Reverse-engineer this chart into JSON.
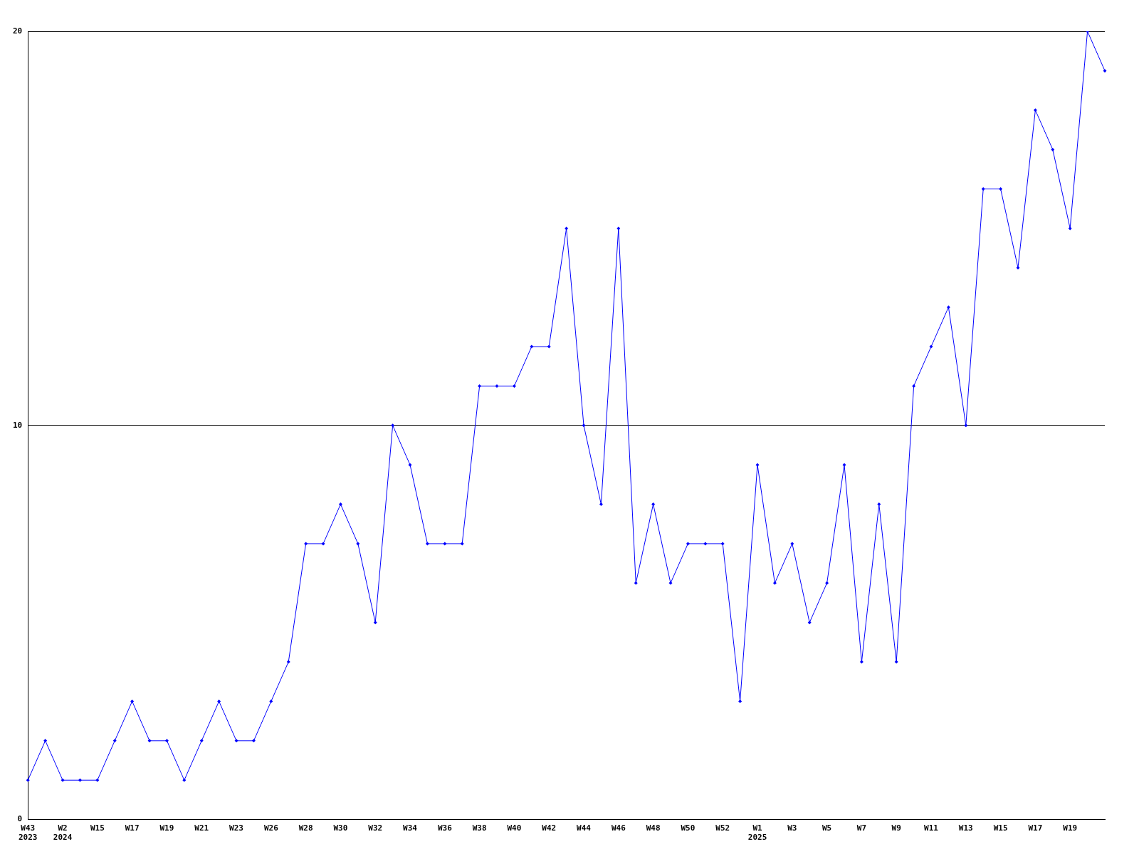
{
  "chart_data": {
    "type": "line",
    "categories": [
      "W43\n2023",
      null,
      "W2\n2024",
      null,
      "W15",
      null,
      "W17",
      null,
      "W19",
      null,
      "W21",
      null,
      "W23",
      null,
      "W26",
      null,
      "W28",
      null,
      "W30",
      null,
      "W32",
      null,
      "W34",
      null,
      "W36",
      null,
      "W38",
      null,
      "W40",
      null,
      "W42",
      null,
      "W44",
      null,
      "W46",
      null,
      "W48",
      null,
      "W50",
      null,
      "W52",
      null,
      "W1\n2025",
      null,
      "W3",
      null,
      "W5",
      null,
      "W7",
      null,
      "W9",
      null,
      "W11",
      null,
      "W13",
      null,
      "W15",
      null,
      "W17",
      null,
      "W19",
      null,
      null
    ],
    "series": [
      {
        "color": "#0000ff",
        "values": [
          1,
          2,
          1,
          1,
          1,
          2,
          3,
          2,
          2,
          1,
          2,
          3,
          2,
          2,
          3,
          4,
          7,
          7,
          8,
          7,
          5,
          10,
          9,
          7,
          7,
          7,
          11,
          11,
          11,
          12,
          12,
          15,
          10,
          8,
          15,
          6,
          8,
          6,
          7,
          7,
          7,
          3,
          9,
          6,
          7,
          5,
          6,
          9,
          4,
          8,
          4,
          11,
          12,
          13,
          10,
          16,
          16,
          14,
          18,
          17,
          15,
          20,
          19
        ]
      }
    ],
    "ylim": [
      0,
      20
    ],
    "yticks": [
      0,
      10,
      20
    ],
    "grid": "y",
    "legend": false,
    "marker": "diamond",
    "line_style": "solid"
  }
}
